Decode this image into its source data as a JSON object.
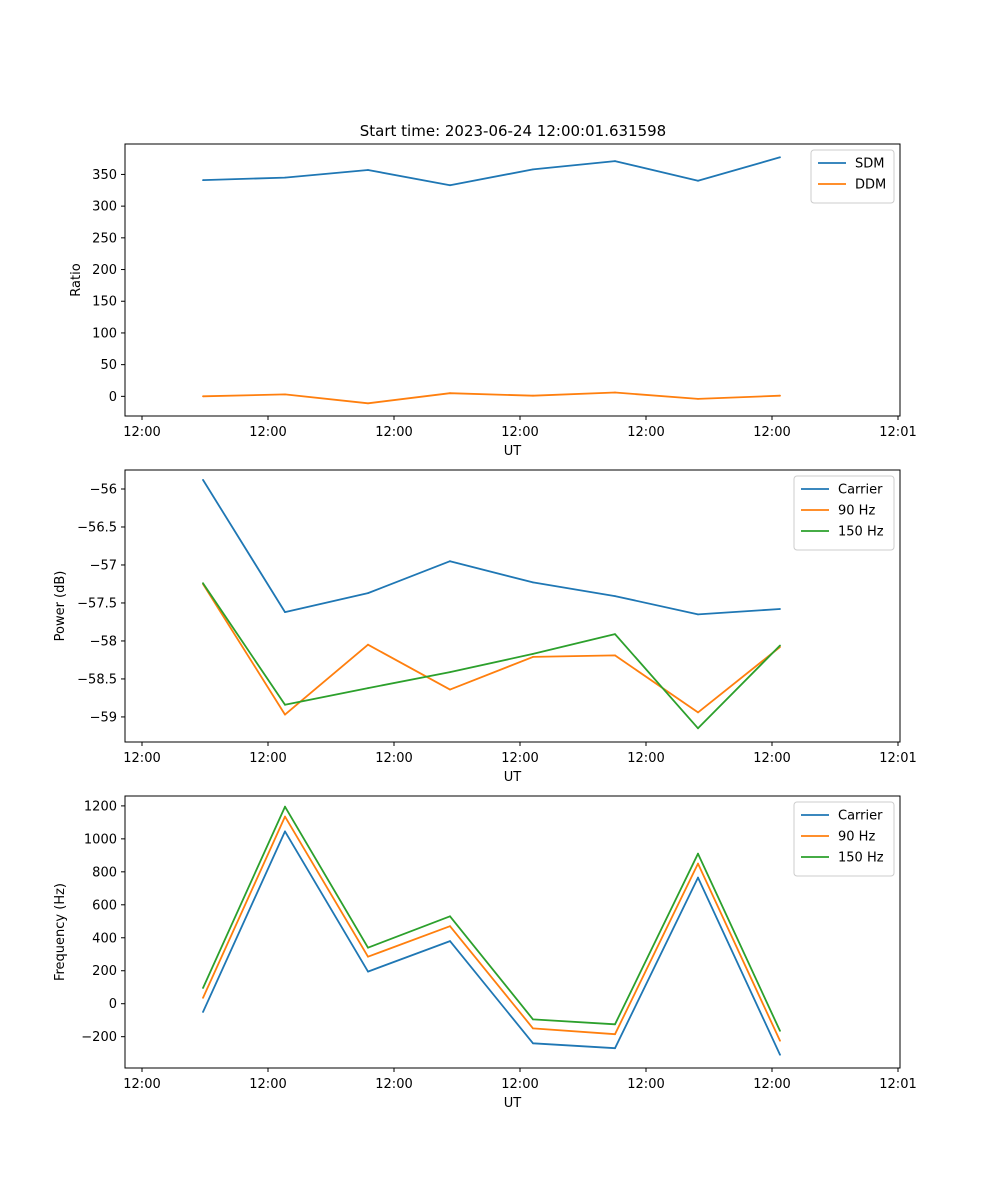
{
  "figure_title": "Start time: 2023-06-24 12:00:01.631598",
  "colors": {
    "blue": "#1f77b4",
    "orange": "#ff7f0e",
    "green": "#2ca02c"
  },
  "chart_data": [
    {
      "type": "line",
      "xlabel": "UT",
      "ylabel": "Ratio",
      "xticks": [
        "12:00",
        "12:00",
        "12:00",
        "12:00",
        "12:00",
        "12:00",
        "12:01"
      ],
      "yticks": [
        0,
        50,
        100,
        150,
        200,
        250,
        300,
        350
      ],
      "ylim": [
        -31,
        398
      ],
      "legend_position": "upper-right",
      "series": [
        {
          "name": "SDM",
          "color": "#1f77b4",
          "values": [
            341,
            345,
            357,
            333,
            358,
            371,
            340,
            377
          ]
        },
        {
          "name": "DDM",
          "color": "#ff7f0e",
          "values": [
            0,
            3,
            -11,
            5,
            1,
            6,
            -4,
            1
          ]
        }
      ]
    },
    {
      "type": "line",
      "xlabel": "UT",
      "ylabel": "Power (dB)",
      "xticks": [
        "12:00",
        "12:00",
        "12:00",
        "12:00",
        "12:00",
        "12:00",
        "12:01"
      ],
      "yticks": [
        -56.0,
        -56.5,
        -57.0,
        -57.5,
        -58.0,
        -58.5,
        -59.0
      ],
      "ylim": [
        -59.33,
        -55.75
      ],
      "legend_position": "upper-right",
      "series": [
        {
          "name": "Carrier",
          "color": "#1f77b4",
          "values": [
            -55.88,
            -57.62,
            -57.37,
            -56.95,
            -57.23,
            -57.41,
            -57.65,
            -57.58
          ]
        },
        {
          "name": "90 Hz",
          "color": "#ff7f0e",
          "values": [
            -57.25,
            -58.97,
            -58.05,
            -58.64,
            -58.21,
            -58.19,
            -58.94,
            -58.08
          ]
        },
        {
          "name": "150 Hz",
          "color": "#2ca02c",
          "values": [
            -57.24,
            -58.84,
            -58.62,
            -58.41,
            -58.17,
            -57.91,
            -59.15,
            -58.06
          ]
        }
      ]
    },
    {
      "type": "line",
      "xlabel": "UT",
      "ylabel": "Frequency (Hz)",
      "xticks": [
        "12:00",
        "12:00",
        "12:00",
        "12:00",
        "12:00",
        "12:00",
        "12:01"
      ],
      "yticks": [
        -200,
        0,
        200,
        400,
        600,
        800,
        1000,
        1200
      ],
      "ylim": [
        -390,
        1260
      ],
      "legend_position": "upper-right",
      "series": [
        {
          "name": "Carrier",
          "color": "#1f77b4",
          "values": [
            -50,
            1045,
            195,
            380,
            -240,
            -270,
            765,
            -310
          ]
        },
        {
          "name": "90 Hz",
          "color": "#ff7f0e",
          "values": [
            35,
            1135,
            285,
            470,
            -150,
            -185,
            850,
            -225
          ]
        },
        {
          "name": "150 Hz",
          "color": "#2ca02c",
          "values": [
            95,
            1195,
            340,
            530,
            -95,
            -125,
            910,
            -165
          ]
        }
      ]
    }
  ]
}
